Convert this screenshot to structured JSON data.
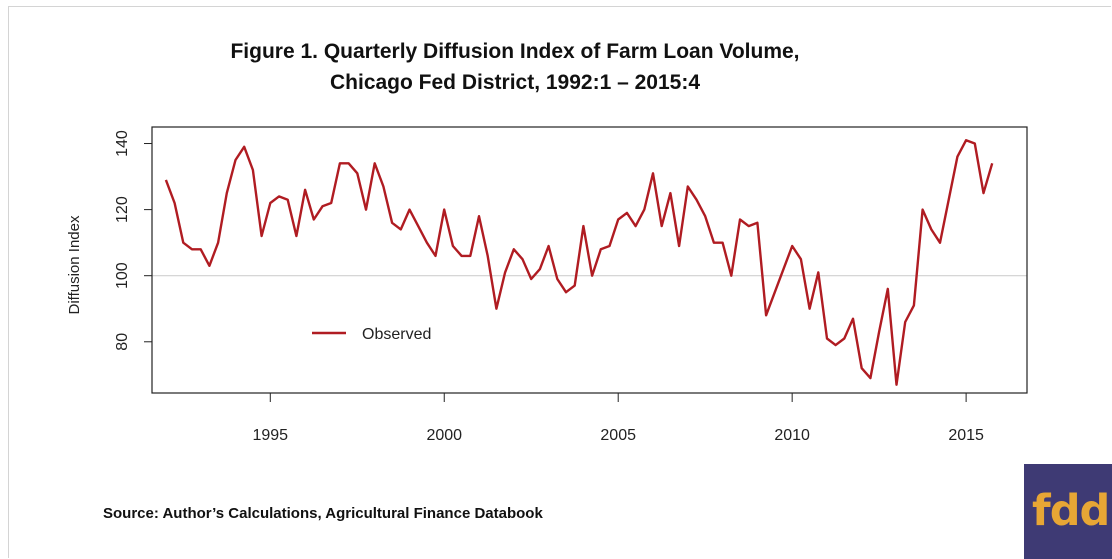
{
  "title_line1": "Figure 1. Quarterly Diffusion Index of Farm Loan Volume,",
  "title_line2": "Chicago Fed District, 1992:1 – 2015:4",
  "source": "Source: Author’s Calculations, Agricultural Finance Databook",
  "logo_text": "fdd",
  "colors": {
    "series": "#b01c22",
    "reference": "#d0d0d0",
    "logo_bg": "#3e3a74",
    "logo_fg": "#e7a635"
  },
  "chart_data": {
    "type": "line",
    "title": "Figure 1. Quarterly Diffusion Index of Farm Loan Volume, Chicago Fed District, 1992:1 – 2015:4",
    "xlabel": "",
    "ylabel": "Diffusion Index",
    "xlim": [
      1991.6,
      2016.75
    ],
    "ylim": [
      64.5,
      145
    ],
    "xticks": [
      1995,
      2000,
      2005,
      2010,
      2015
    ],
    "yticks": [
      80,
      100,
      120,
      140
    ],
    "reference_line": 100,
    "legend": {
      "label": "Observed",
      "position": "middle-left"
    },
    "grid": false,
    "series": [
      {
        "name": "Observed",
        "x": [
          1992.0,
          1992.25,
          1992.5,
          1992.75,
          1993.0,
          1993.25,
          1993.5,
          1993.75,
          1994.0,
          1994.25,
          1994.5,
          1994.75,
          1995.0,
          1995.25,
          1995.5,
          1995.75,
          1996.0,
          1996.25,
          1996.5,
          1996.75,
          1997.0,
          1997.25,
          1997.5,
          1997.75,
          1998.0,
          1998.25,
          1998.5,
          1998.75,
          1999.0,
          1999.25,
          1999.5,
          1999.75,
          2000.0,
          2000.25,
          2000.5,
          2000.75,
          2001.0,
          2001.25,
          2001.5,
          2001.75,
          2002.0,
          2002.25,
          2002.5,
          2002.75,
          2003.0,
          2003.25,
          2003.5,
          2003.75,
          2004.0,
          2004.25,
          2004.5,
          2004.75,
          2005.0,
          2005.25,
          2005.5,
          2005.75,
          2006.0,
          2006.25,
          2006.5,
          2006.75,
          2007.0,
          2007.25,
          2007.5,
          2007.75,
          2008.0,
          2008.25,
          2008.5,
          2008.75,
          2009.0,
          2009.25,
          2009.5,
          2009.75,
          2010.0,
          2010.25,
          2010.5,
          2010.75,
          2011.0,
          2011.25,
          2011.5,
          2011.75,
          2012.0,
          2012.25,
          2012.5,
          2012.75,
          2013.0,
          2013.25,
          2013.5,
          2013.75,
          2014.0,
          2014.25,
          2014.5,
          2014.75,
          2015.0,
          2015.25,
          2015.5,
          2015.75
        ],
        "values": [
          129,
          122,
          110,
          108,
          108,
          103,
          110,
          125,
          135,
          139,
          132,
          112,
          122,
          124,
          123,
          112,
          126,
          117,
          121,
          122,
          134,
          134,
          131,
          120,
          134,
          127,
          116,
          114,
          120,
          115,
          110,
          106,
          120,
          109,
          106,
          106,
          118,
          106,
          90,
          101,
          108,
          105,
          99,
          102,
          109,
          99,
          95,
          97,
          115,
          100,
          108,
          109,
          117,
          119,
          115,
          120,
          131,
          115,
          125,
          109,
          127,
          123,
          118,
          110,
          110,
          100,
          117,
          115,
          116,
          88,
          95,
          102,
          109,
          105,
          90,
          101,
          81,
          79,
          81,
          87,
          72,
          69,
          83,
          96,
          67,
          86,
          91,
          120,
          114,
          110,
          123,
          136,
          141,
          140,
          125,
          134
        ]
      }
    ]
  }
}
